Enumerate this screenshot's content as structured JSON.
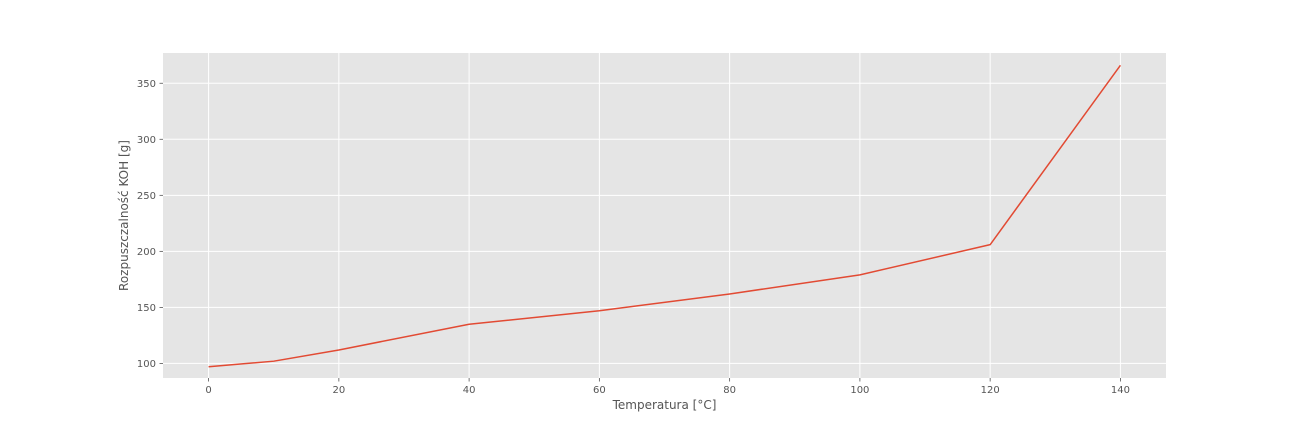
{
  "chart_data": {
    "type": "line",
    "title": "",
    "xlabel": "Temperatura [°C]",
    "ylabel": "Rozpuszczalność KOH [g]",
    "xlim": [
      -7,
      147
    ],
    "ylim": [
      87,
      377
    ],
    "xticks": [
      0,
      20,
      40,
      60,
      80,
      100,
      120,
      140
    ],
    "yticks": [
      100,
      150,
      200,
      250,
      300,
      350
    ],
    "grid": true,
    "legend": "none",
    "series": [
      {
        "color": "#E24A33",
        "x": [
          0,
          10,
          20,
          40,
          60,
          80,
          100,
          120,
          140
        ],
        "y": [
          97,
          102,
          112,
          135,
          147,
          162,
          179,
          206,
          366
        ]
      }
    ]
  },
  "style": {
    "plot_background": "#E5E5E5",
    "grid_color": "#FFFFFF",
    "text_color": "#555555"
  }
}
